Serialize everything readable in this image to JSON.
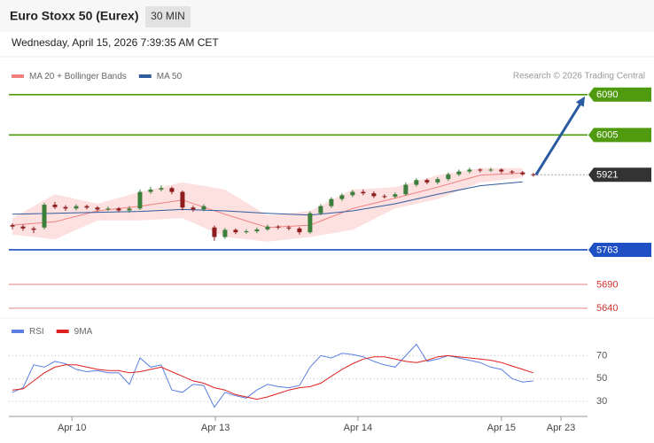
{
  "header": {
    "title": "Euro Stoxx 50 (Eurex)",
    "interval": "30 MIN",
    "datetime": "Wednesday, April 15, 2026 7:39:35 AM CET"
  },
  "chart_data": [
    {
      "type": "candlestick",
      "source": "Research © 2026 Trading Central",
      "up_color": "#3b7f3b",
      "down_color": "#8e1c1c",
      "xlim": [
        -0.3,
        54.1
      ],
      "ylim": [
        5621,
        6112
      ],
      "x": [
        0,
        1,
        2,
        3,
        4,
        5,
        6,
        7,
        8,
        9,
        10,
        11,
        12,
        13,
        14,
        15,
        16,
        17,
        18,
        19,
        20,
        21,
        22,
        23,
        24,
        25,
        26,
        27,
        28,
        29,
        30,
        31,
        32,
        33,
        34,
        35,
        36,
        37,
        38,
        39,
        40,
        41,
        42,
        43,
        44,
        45,
        46,
        47,
        48,
        49
      ],
      "open": [
        5815,
        5812,
        5808,
        5810,
        5858,
        5853,
        5850,
        5855,
        5852,
        5848,
        5850,
        5846,
        5850,
        5885,
        5890,
        5893,
        5885,
        5852,
        5848,
        5810,
        5790,
        5805,
        5800,
        5802,
        5806,
        5812,
        5810,
        5808,
        5800,
        5840,
        5855,
        5870,
        5878,
        5885,
        5882,
        5876,
        5875,
        5880,
        5900,
        5910,
        5905,
        5912,
        5922,
        5928,
        5932,
        5930,
        5932,
        5928,
        5926,
        5922
      ],
      "high": [
        5819,
        5816,
        5812,
        5862,
        5864,
        5857,
        5859,
        5858,
        5855,
        5854,
        5853,
        5855,
        5890,
        5896,
        5899,
        5896,
        5888,
        5856,
        5859,
        5814,
        5809,
        5808,
        5806,
        5810,
        5816,
        5815,
        5814,
        5811,
        5844,
        5859,
        5874,
        5882,
        5889,
        5890,
        5886,
        5880,
        5884,
        5905,
        5914,
        5913,
        5916,
        5926,
        5932,
        5936,
        5935,
        5936,
        5935,
        5931,
        5929,
        5925
      ],
      "low": [
        5806,
        5803,
        5798,
        5806,
        5849,
        5845,
        5846,
        5848,
        5844,
        5845,
        5842,
        5841,
        5847,
        5881,
        5886,
        5880,
        5846,
        5843,
        5844,
        5782,
        5786,
        5796,
        5797,
        5798,
        5803,
        5806,
        5804,
        5795,
        5797,
        5836,
        5851,
        5866,
        5874,
        5878,
        5872,
        5871,
        5871,
        5877,
        5896,
        5901,
        5901,
        5908,
        5918,
        5924,
        5926,
        5927,
        5924,
        5922,
        5919,
        5917
      ],
      "close": [
        5812,
        5808,
        5805,
        5858,
        5853,
        5850,
        5855,
        5852,
        5848,
        5850,
        5846,
        5850,
        5885,
        5890,
        5893,
        5885,
        5852,
        5848,
        5855,
        5790,
        5805,
        5800,
        5802,
        5806,
        5812,
        5810,
        5808,
        5800,
        5840,
        5855,
        5870,
        5878,
        5885,
        5882,
        5876,
        5875,
        5880,
        5900,
        5910,
        5905,
        5912,
        5922,
        5928,
        5932,
        5930,
        5932,
        5928,
        5926,
        5922,
        5921
      ],
      "series": [
        {
          "name": "MA 20 + Bollinger Bands",
          "color": "#f08080",
          "band_color": "#fde0e0",
          "x": [
            0,
            4,
            8,
            12,
            16,
            20,
            24,
            28,
            32,
            36,
            40,
            44,
            48
          ],
          "values": [
            5815,
            5822,
            5845,
            5855,
            5868,
            5838,
            5810,
            5815,
            5850,
            5872,
            5895,
            5920,
            5925
          ],
          "upper": [
            5830,
            5880,
            5860,
            5885,
            5905,
            5890,
            5835,
            5845,
            5890,
            5895,
            5920,
            5935,
            5935
          ],
          "lower": [
            5795,
            5785,
            5825,
            5825,
            5830,
            5790,
            5780,
            5790,
            5805,
            5850,
            5870,
            5905,
            5915
          ]
        },
        {
          "name": "MA 50",
          "color": "#2f5d9e",
          "x": [
            0,
            4,
            8,
            12,
            16,
            20,
            24,
            28,
            32,
            36,
            40,
            44,
            48
          ],
          "values": [
            5838,
            5840,
            5842,
            5844,
            5848,
            5845,
            5840,
            5836,
            5845,
            5860,
            5880,
            5898,
            5906
          ]
        }
      ],
      "levels": [
        {
          "value": 6090,
          "color": "#4f9a0e",
          "style": "box",
          "line": "solid"
        },
        {
          "value": 6005,
          "color": "#4f9a0e",
          "style": "box",
          "line": "solid"
        },
        {
          "value": 5921,
          "color": "#333333",
          "style": "box",
          "line": "dotted"
        },
        {
          "value": 5763,
          "color": "#1f4fc4",
          "style": "box",
          "line": "solid"
        },
        {
          "value": 5690,
          "color": "#d03030",
          "style": "text",
          "line": "thin"
        },
        {
          "value": 5640,
          "color": "#d03030",
          "style": "text",
          "line": "thin"
        }
      ]
    },
    {
      "type": "line",
      "xlim": [
        -0.3,
        54.1
      ],
      "ylim": [
        17,
        85
      ],
      "yticks": [
        70,
        50,
        30
      ],
      "xticks": [
        {
          "value": 5.6,
          "label": "Apr 10"
        },
        {
          "value": 19.1,
          "label": "Apr 13"
        },
        {
          "value": 32.5,
          "label": "Apr 14"
        },
        {
          "value": 46,
          "label": "Apr 15"
        },
        {
          "value": 51.6,
          "label": "Apr 23"
        }
      ],
      "x": [
        0,
        1,
        2,
        3,
        4,
        5,
        6,
        7,
        8,
        9,
        10,
        11,
        12,
        13,
        14,
        15,
        16,
        17,
        18,
        19,
        20,
        21,
        22,
        23,
        24,
        25,
        26,
        27,
        28,
        29,
        30,
        31,
        32,
        33,
        34,
        35,
        36,
        37,
        38,
        39,
        40,
        41,
        42,
        43,
        44,
        45,
        46,
        47,
        48,
        49
      ],
      "series": [
        {
          "name": "RSI",
          "color": "#5b7fe0",
          "values": [
            38,
            42,
            62,
            60,
            65,
            63,
            58,
            56,
            57,
            55,
            55,
            45,
            68,
            60,
            62,
            40,
            38,
            45,
            44,
            25,
            38,
            35,
            33,
            40,
            45,
            43,
            42,
            44,
            60,
            70,
            68,
            72,
            71,
            69,
            65,
            62,
            60,
            70,
            80,
            65,
            67,
            70,
            68,
            66,
            64,
            60,
            58,
            50,
            47,
            48
          ]
        },
        {
          "name": "9MA",
          "color": "#e02020",
          "values": [
            40,
            41,
            48,
            55,
            60,
            62,
            62,
            60,
            58,
            57,
            57,
            55,
            56,
            58,
            60,
            56,
            52,
            48,
            46,
            42,
            40,
            36,
            34,
            32,
            34,
            37,
            40,
            42,
            43,
            46,
            52,
            58,
            63,
            67,
            69,
            69,
            67,
            65,
            64,
            66,
            69,
            70,
            69,
            68,
            67,
            66,
            64,
            61,
            58,
            55
          ]
        }
      ]
    }
  ]
}
